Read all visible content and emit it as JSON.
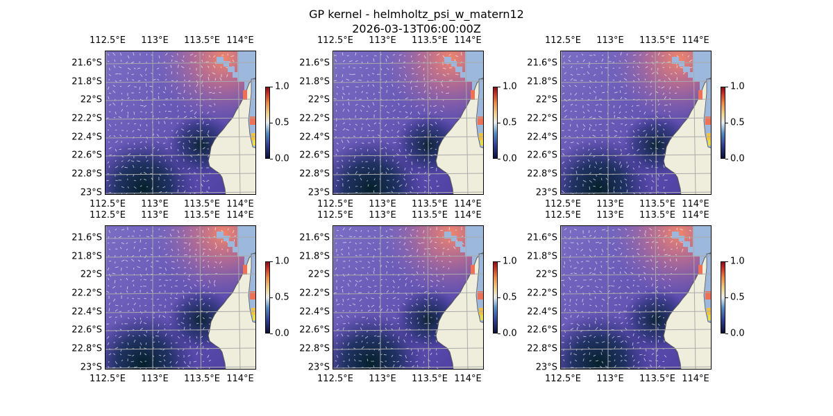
{
  "title": {
    "line1": "GP kernel - helmholtz_psi_w_matern12",
    "line2": "2026-03-13T06:00:00Z"
  },
  "axes": {
    "lon_ticks": [
      "112.5°E",
      "113°E",
      "113.5°E",
      "114°E"
    ],
    "lat_ticks": [
      "21.6°S",
      "21.8°S",
      "22°S",
      "22.2°S",
      "22.4°S",
      "22.6°S",
      "22.8°S",
      "23°S"
    ]
  },
  "colorbar": {
    "ticks": [
      "0.0",
      "0.5",
      "1.0"
    ],
    "range": [
      0.0,
      1.0
    ]
  },
  "colors": {
    "ocean_base": "#6a5cb8",
    "land": "#efeedd",
    "water_inlet": "#9cb8dc",
    "grid": "#aaaaaa",
    "coast": "#555555"
  },
  "panels": [
    {
      "id": 1
    },
    {
      "id": 2
    },
    {
      "id": 3
    },
    {
      "id": 4
    },
    {
      "id": 5
    },
    {
      "id": 6
    }
  ]
}
